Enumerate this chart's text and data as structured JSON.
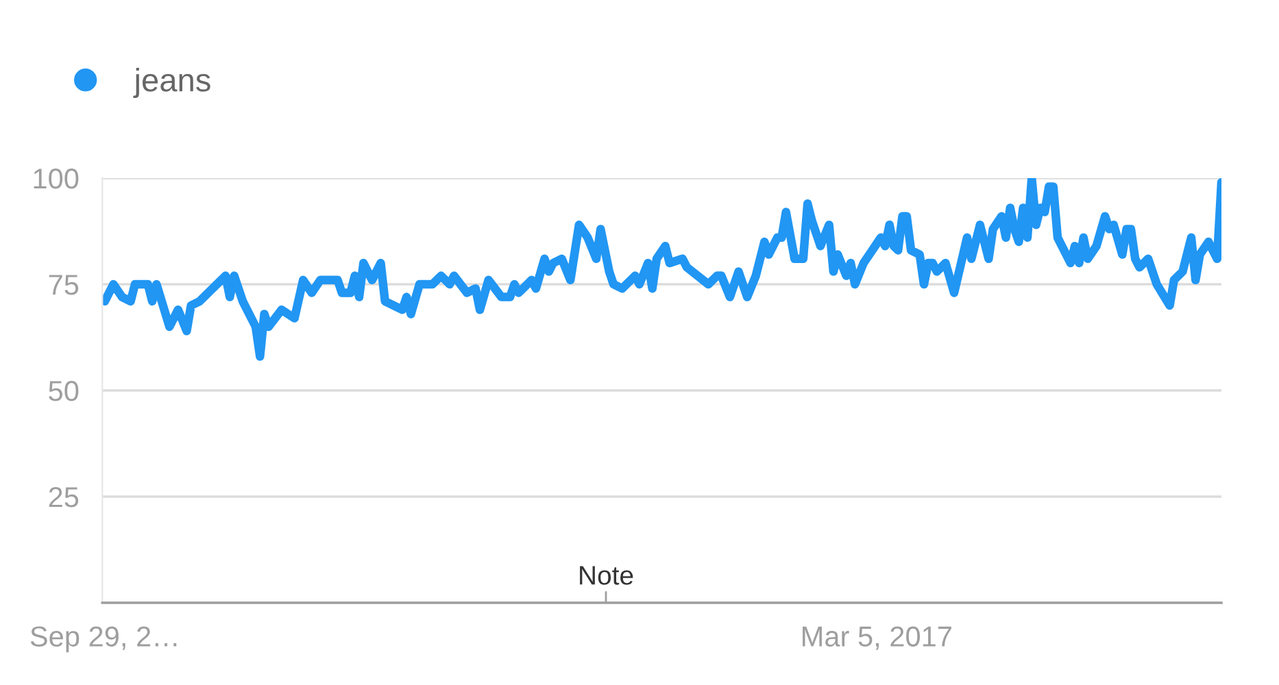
{
  "chart_data": {
    "type": "line",
    "x": [
      "2013-09-29",
      "2013-10-13",
      "2013-10-27",
      "2013-11-10",
      "2013-11-17",
      "2013-12-08",
      "2013-12-15",
      "2013-12-22",
      "2014-01-12",
      "2014-01-26",
      "2014-02-09",
      "2014-02-16",
      "2014-03-02",
      "2014-03-30",
      "2014-04-13",
      "2014-04-20",
      "2014-04-27",
      "2014-05-11",
      "2014-06-01",
      "2014-06-08",
      "2014-06-15",
      "2014-06-22",
      "2014-07-13",
      "2014-08-03",
      "2014-08-17",
      "2014-08-31",
      "2014-09-14",
      "2014-10-12",
      "2014-10-19",
      "2014-11-02",
      "2014-11-09",
      "2014-11-16",
      "2014-11-23",
      "2014-12-07",
      "2014-12-21",
      "2014-12-28",
      "2015-01-25",
      "2015-02-01",
      "2015-02-08",
      "2015-02-22",
      "2015-03-15",
      "2015-03-29",
      "2015-04-12",
      "2015-04-19",
      "2015-05-10",
      "2015-05-24",
      "2015-05-31",
      "2015-06-14",
      "2015-07-05",
      "2015-07-19",
      "2015-07-26",
      "2015-08-02",
      "2015-08-23",
      "2015-08-30",
      "2015-09-13",
      "2015-09-20",
      "2015-09-27",
      "2015-10-11",
      "2015-10-25",
      "2015-11-08",
      "2015-11-22",
      "2015-12-06",
      "2015-12-13",
      "2015-12-27",
      "2016-01-03",
      "2016-01-17",
      "2016-02-07",
      "2016-02-14",
      "2016-02-28",
      "2016-03-06",
      "2016-03-13",
      "2016-03-27",
      "2016-04-03",
      "2016-04-24",
      "2016-05-01",
      "2016-06-05",
      "2016-06-19",
      "2016-06-26",
      "2016-07-10",
      "2016-07-24",
      "2016-08-07",
      "2016-08-21",
      "2016-09-04",
      "2016-09-11",
      "2016-09-25",
      "2016-10-02",
      "2016-10-09",
      "2016-10-23",
      "2016-11-06",
      "2016-11-13",
      "2016-11-20",
      "2016-12-04",
      "2016-12-18",
      "2016-12-25",
      "2017-01-01",
      "2017-01-15",
      "2017-01-22",
      "2017-01-29",
      "2017-02-12",
      "2017-02-26",
      "2017-03-12",
      "2017-03-19",
      "2017-03-26",
      "2017-04-02",
      "2017-04-09",
      "2017-04-16",
      "2017-04-23",
      "2017-04-30",
      "2017-05-14",
      "2017-05-21",
      "2017-05-28",
      "2017-06-04",
      "2017-06-11",
      "2017-06-25",
      "2017-07-09",
      "2017-07-30",
      "2017-08-06",
      "2017-08-20",
      "2017-09-03",
      "2017-09-10",
      "2017-09-24",
      "2017-10-01",
      "2017-10-08",
      "2017-10-15",
      "2017-10-22",
      "2017-10-29",
      "2017-11-05",
      "2017-11-12",
      "2017-11-19",
      "2017-11-26",
      "2017-12-03",
      "2017-12-10",
      "2017-12-17",
      "2017-12-24",
      "2018-01-14",
      "2018-01-21",
      "2018-01-28",
      "2018-02-04",
      "2018-02-11",
      "2018-02-25",
      "2018-03-11",
      "2018-03-18",
      "2018-03-25",
      "2018-04-08",
      "2018-04-15",
      "2018-04-22",
      "2018-04-29",
      "2018-05-06",
      "2018-05-20",
      "2018-06-03",
      "2018-06-24",
      "2018-07-01",
      "2018-07-15",
      "2018-07-29",
      "2018-08-05",
      "2018-08-12",
      "2018-08-26",
      "2018-09-09",
      "2018-09-16"
    ],
    "series": [
      {
        "name": "jeans",
        "color": "#2196f3",
        "values": [
          71,
          75,
          72,
          71,
          75,
          75,
          71,
          75,
          65,
          69,
          64,
          70,
          71,
          75,
          77,
          72,
          77,
          71,
          65,
          58,
          68,
          65,
          69,
          67,
          76,
          73,
          76,
          76,
          73,
          73,
          77,
          72,
          80,
          76,
          80,
          71,
          69,
          72,
          68,
          75,
          75,
          77,
          75,
          77,
          73,
          74,
          69,
          76,
          72,
          72,
          75,
          73,
          76,
          74,
          81,
          78,
          80,
          81,
          76,
          89,
          86,
          81,
          88,
          78,
          75,
          74,
          77,
          75,
          80,
          74,
          81,
          84,
          80,
          81,
          79,
          75,
          77,
          77,
          72,
          78,
          72,
          77,
          85,
          82,
          86,
          86,
          92,
          81,
          81,
          94,
          90,
          84,
          89,
          78,
          82,
          77,
          80,
          75,
          80,
          83,
          86,
          84,
          89,
          84,
          83,
          91,
          91,
          83,
          82,
          75,
          80,
          80,
          78,
          80,
          73,
          86,
          81,
          89,
          81,
          88,
          91,
          86,
          93,
          88,
          85,
          93,
          86,
          100,
          89,
          93,
          92,
          98,
          98,
          86,
          80,
          84,
          80,
          86,
          81,
          84,
          91,
          88,
          89,
          82,
          88,
          88,
          81,
          79,
          81,
          75,
          70,
          76,
          78,
          86,
          76,
          82,
          85,
          81,
          99
        ]
      }
    ],
    "xlim": [
      "2013-09-25",
      "2018-09-16"
    ],
    "xticks": [
      {
        "value": "2013-09-29",
        "label": "Sep 29, 2…"
      },
      {
        "value": "2017-03-05",
        "label": "Mar 5, 2017"
      }
    ],
    "ylim": [
      0,
      100
    ],
    "yticks": [
      {
        "value": 0,
        "label": null
      },
      25,
      50,
      75,
      100
    ],
    "grid": "y",
    "legend": "top left",
    "line_style": "solid",
    "annotations": [
      "Note"
    ]
  }
}
